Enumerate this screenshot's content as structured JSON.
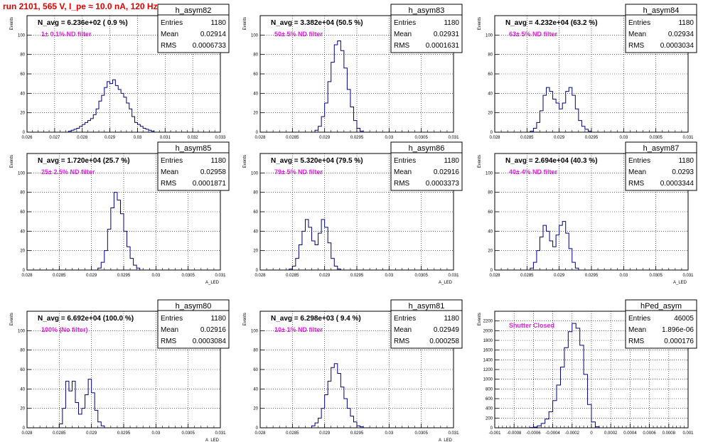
{
  "page_title": "run 2101,   565 V, I_pe ≈ 10.0 nA, 120 Hz",
  "chart_data": [
    {
      "type": "histogram",
      "hist_name": "h_asym82",
      "stats": [
        [
          "Entries",
          "1180"
        ],
        [
          "Mean",
          "0.02914"
        ],
        [
          "RMS",
          "0.0006733"
        ]
      ],
      "annotation": "N_avg = 6.236e+02 ( 0.9 %)",
      "filter_label": "1± 0.1% ND filter",
      "ylabel": "Events",
      "xlabel": "A_LED",
      "xlim": [
        0.026,
        0.033
      ],
      "ylim": [
        0,
        120
      ],
      "xticks": [
        0.026,
        0.027,
        0.028,
        0.029,
        0.03,
        0.031,
        0.032,
        0.033
      ],
      "xtick_labels": [
        "0.026",
        "0.027",
        "0.028",
        "0.029",
        "0.03",
        "0.031",
        "0.032",
        "0.033"
      ],
      "yticks": [
        0,
        20,
        40,
        60,
        80,
        100
      ],
      "bin_start": 0.0275,
      "bin_width": 0.0001,
      "bin_values": [
        1,
        2,
        3,
        4,
        6,
        8,
        10,
        12,
        14,
        18,
        24,
        32,
        38,
        46,
        52,
        50,
        54,
        48,
        44,
        40,
        36,
        30,
        24,
        16,
        10,
        8,
        6,
        4,
        3,
        2,
        1
      ]
    },
    {
      "type": "histogram",
      "hist_name": "h_asym83",
      "stats": [
        [
          "Entries",
          "1180"
        ],
        [
          "Mean",
          "0.02931"
        ],
        [
          "RMS",
          "0.0001631"
        ]
      ],
      "annotation": "N_avg = 3.382e+04 (50.5 %)",
      "filter_label": "50± 5% ND filter",
      "ylabel": "Events",
      "xlabel": "A_LED",
      "xlim": [
        0.028,
        0.031
      ],
      "ylim": [
        0,
        120
      ],
      "xticks": [
        0.028,
        0.0285,
        0.029,
        0.0295,
        0.03,
        0.0305,
        0.031
      ],
      "xtick_labels": [
        "0.028",
        "0.0285",
        "0.029",
        "0.0295",
        "0.03",
        "0.0305",
        "0.031"
      ],
      "yticks": [
        0,
        20,
        40,
        60,
        80,
        100
      ],
      "bin_start": 0.02885,
      "bin_width": 5e-05,
      "bin_values": [
        2,
        6,
        16,
        30,
        52,
        72,
        90,
        94,
        84,
        66,
        44,
        26,
        12,
        4,
        1
      ]
    },
    {
      "type": "histogram",
      "hist_name": "h_asym84",
      "stats": [
        [
          "Entries",
          "1180"
        ],
        [
          "Mean",
          "0.02934"
        ],
        [
          "RMS",
          "0.0003034"
        ]
      ],
      "annotation": "N_avg = 4.232e+04 (63.2 %)",
      "filter_label": "63± 5% ND filter",
      "ylabel": "Events",
      "xlabel": "A_LED",
      "xlim": [
        0.028,
        0.031
      ],
      "ylim": [
        0,
        120
      ],
      "xticks": [
        0.028,
        0.0285,
        0.029,
        0.0295,
        0.03,
        0.0305,
        0.031
      ],
      "xtick_labels": [
        "0.028",
        "0.0285",
        "0.029",
        "0.0295",
        "0.03",
        "0.0305",
        "0.031"
      ],
      "yticks": [
        0,
        20,
        40,
        60,
        80,
        100
      ],
      "bin_start": 0.02855,
      "bin_width": 5e-05,
      "bin_values": [
        1,
        4,
        10,
        22,
        38,
        46,
        42,
        34,
        30,
        24,
        30,
        42,
        46,
        38,
        24,
        12,
        6,
        3,
        1
      ]
    },
    {
      "type": "histogram",
      "hist_name": "h_asym85",
      "stats": [
        [
          "Entries",
          "1180"
        ],
        [
          "Mean",
          "0.02958"
        ],
        [
          "RMS",
          "0.0001871"
        ]
      ],
      "annotation": "N_avg = 1.720e+04 (25.7 %)",
      "filter_label": "25± 2.5% ND filter",
      "ylabel": "Events",
      "xlabel": "A_LED",
      "xlim": [
        0.028,
        0.031
      ],
      "ylim": [
        0,
        120
      ],
      "xticks": [
        0.028,
        0.0285,
        0.029,
        0.0295,
        0.03,
        0.0305,
        0.031
      ],
      "xtick_labels": [
        "0.028",
        "0.0285",
        "0.029",
        "0.0295",
        "0.03",
        "0.0305",
        "0.031"
      ],
      "yticks": [
        0,
        20,
        40,
        60,
        80,
        100
      ],
      "bin_start": 0.0291,
      "bin_width": 5e-05,
      "bin_values": [
        2,
        8,
        20,
        42,
        64,
        80,
        72,
        58,
        40,
        24,
        12,
        5,
        2
      ]
    },
    {
      "type": "histogram",
      "hist_name": "h_asym86",
      "stats": [
        [
          "Entries",
          "1180"
        ],
        [
          "Mean",
          "0.02916"
        ],
        [
          "RMS",
          "0.0003373"
        ]
      ],
      "annotation": "N_avg = 5.320e+04 (79.5 %)",
      "filter_label": "79± 5% ND filter",
      "ylabel": "Events",
      "xlabel": "A_LED",
      "xlim": [
        0.028,
        0.031
      ],
      "ylim": [
        0,
        120
      ],
      "xticks": [
        0.028,
        0.0285,
        0.029,
        0.0295,
        0.03,
        0.0305,
        0.031
      ],
      "xtick_labels": [
        "0.028",
        "0.0285",
        "0.029",
        "0.0295",
        "0.03",
        "0.0305",
        "0.031"
      ],
      "yticks": [
        0,
        20,
        40,
        60,
        80,
        100
      ],
      "bin_start": 0.02845,
      "bin_width": 5e-05,
      "bin_values": [
        1,
        4,
        12,
        26,
        40,
        52,
        44,
        30,
        26,
        38,
        52,
        44,
        28,
        12,
        4,
        1
      ]
    },
    {
      "type": "histogram",
      "hist_name": "h_asym87",
      "stats": [
        [
          "Entries",
          "1180"
        ],
        [
          "Mean",
          "0.0293"
        ],
        [
          "RMS",
          "0.0003344"
        ]
      ],
      "annotation": "N_avg = 2.694e+04 (40.3 %)",
      "filter_label": "40± 4% ND filter",
      "ylabel": "Events",
      "xlabel": "A_LED",
      "xlim": [
        0.028,
        0.031
      ],
      "ylim": [
        0,
        120
      ],
      "xticks": [
        0.028,
        0.0285,
        0.029,
        0.0295,
        0.03,
        0.0305,
        0.031
      ],
      "xtick_labels": [
        "0.028",
        "0.0285",
        "0.029",
        "0.0295",
        "0.03",
        "0.0305",
        "0.031"
      ],
      "yticks": [
        0,
        20,
        40,
        60,
        80,
        100
      ],
      "bin_start": 0.02855,
      "bin_width": 5e-05,
      "bin_values": [
        2,
        8,
        20,
        34,
        46,
        40,
        30,
        24,
        36,
        46,
        50,
        38,
        22,
        8,
        2
      ]
    },
    {
      "type": "histogram",
      "hist_name": "h_asym80",
      "stats": [
        [
          "Entries",
          "1180"
        ],
        [
          "Mean",
          "0.02916"
        ],
        [
          "RMS",
          "0.0003084"
        ]
      ],
      "annotation": "N_avg = 6.692e+04 (100.0 %)",
      "filter_label": "100% (No filter)",
      "ylabel": "Events",
      "xlabel": "A_LED",
      "xlim": [
        0.028,
        0.031
      ],
      "ylim": [
        0,
        120
      ],
      "xticks": [
        0.028,
        0.0285,
        0.029,
        0.0295,
        0.03,
        0.0305,
        0.031
      ],
      "xtick_labels": [
        "0.028",
        "0.0285",
        "0.029",
        "0.0295",
        "0.03",
        "0.0305",
        "0.031"
      ],
      "yticks": [
        0,
        20,
        40,
        60,
        80,
        100
      ],
      "bin_start": 0.0285,
      "bin_width": 5e-05,
      "bin_values": [
        4,
        20,
        48,
        38,
        48,
        26,
        14,
        20,
        34,
        50,
        36,
        18,
        6,
        2
      ]
    },
    {
      "type": "histogram",
      "hist_name": "h_asym81",
      "stats": [
        [
          "Entries",
          "1180"
        ],
        [
          "Mean",
          "0.02949"
        ],
        [
          "RMS",
          "0.000258"
        ]
      ],
      "annotation": "N_avg = 6.298e+03 ( 9.4 %)",
      "filter_label": "10± 1% ND filter",
      "ylabel": "Events",
      "xlabel": "A_LED",
      "xlim": [
        0.028,
        0.031
      ],
      "ylim": [
        0,
        120
      ],
      "xticks": [
        0.028,
        0.0285,
        0.029,
        0.0295,
        0.03,
        0.0305,
        0.031
      ],
      "xtick_labels": [
        "0.028",
        "0.0285",
        "0.029",
        "0.0295",
        "0.03",
        "0.0305",
        "0.031"
      ],
      "yticks": [
        0,
        20,
        40,
        60,
        80,
        100
      ],
      "bin_start": 0.0288,
      "bin_width": 5e-05,
      "bin_values": [
        2,
        5,
        10,
        20,
        34,
        48,
        62,
        66,
        56,
        42,
        30,
        20,
        12,
        6,
        2,
        1
      ]
    },
    {
      "type": "histogram",
      "hist_name": "hPed_asym",
      "stats": [
        [
          "Entries",
          "46005"
        ],
        [
          "Mean",
          "1.896e-06"
        ],
        [
          "RMS",
          "0.000176"
        ]
      ],
      "annotation": "",
      "filter_label": "Shutter Closed",
      "ylabel": "Events",
      "xlabel": "",
      "xlim": [
        -0.001,
        0.001
      ],
      "ylim": [
        0,
        2400
      ],
      "xticks": [
        -0.001,
        -0.0008,
        -0.0006,
        -0.0004,
        -0.0002,
        0,
        0.0002,
        0.0004,
        0.0006,
        0.0008,
        0.001
      ],
      "xtick_labels": [
        "-0.001",
        "-0.0008",
        "-0.0006",
        "-0.0004",
        "-0.0002",
        "0",
        "0.0002",
        "0.0004",
        "0.0006",
        "0.0008",
        "0.001"
      ],
      "yticks": [
        0,
        200,
        400,
        600,
        800,
        1000,
        1200,
        1400,
        1600,
        1800,
        2000,
        2200
      ],
      "bin_start": -0.00064,
      "bin_width": 4e-05,
      "bin_values": [
        5,
        15,
        40,
        90,
        180,
        330,
        560,
        880,
        1250,
        1650,
        1980,
        2150,
        2050,
        1700,
        1100,
        480,
        120,
        20
      ]
    }
  ]
}
